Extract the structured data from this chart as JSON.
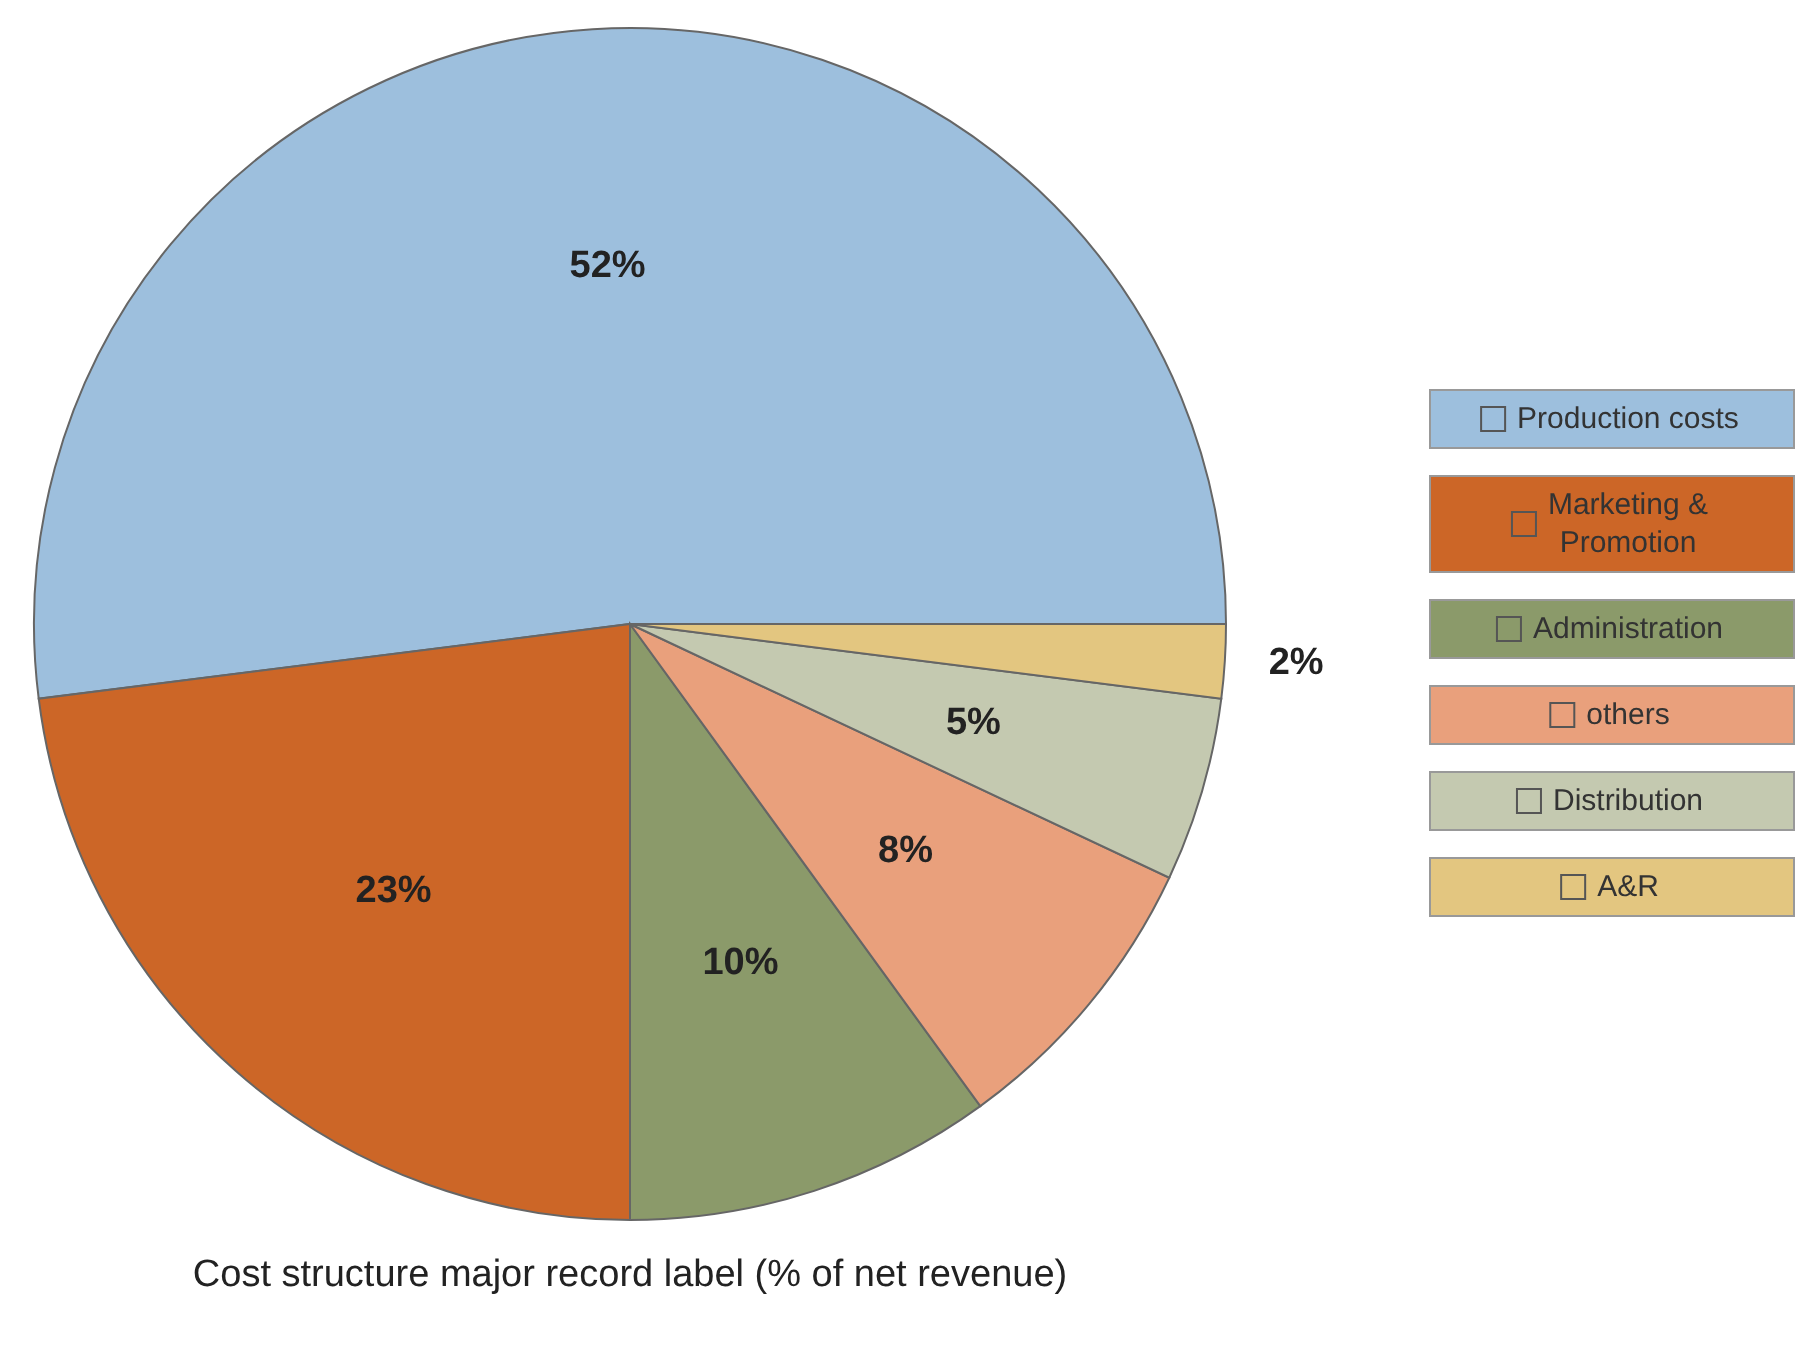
{
  "chart_data": {
    "type": "pie",
    "title": "Cost structure major record label (% of net revenue)",
    "categories": [
      "Production costs",
      "Marketing & Promotion",
      "Administration",
      "others",
      "Distribution",
      "A&R"
    ],
    "values": [
      52,
      23,
      10,
      8,
      5,
      2
    ],
    "colors": [
      "#9dbfdd",
      "#cc6627",
      "#8b9a6a",
      "#e9a07c",
      "#c4c9b0",
      "#e3c680"
    ],
    "value_labels": [
      "52%",
      "23%",
      "10%",
      "8%",
      "5%",
      "2%"
    ],
    "legend": "right"
  }
}
